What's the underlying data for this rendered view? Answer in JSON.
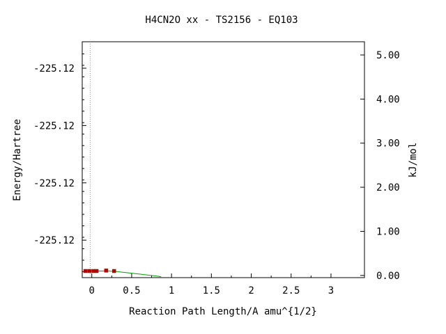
{
  "chart_data": {
    "type": "line",
    "title": "H4CN2O   xx - TS2156 - EQ103",
    "xlabel": "Reaction Path Length/A amu^{1/2}",
    "ylabel_left": "Energy/Hartree",
    "ylabel_right": "kJ/mol",
    "x_ticks": [
      "0",
      "0.5",
      "1",
      "1.5",
      "2",
      "2.5",
      "3"
    ],
    "x_tick_values": [
      0,
      0.5,
      1,
      1.5,
      2,
      2.5,
      3
    ],
    "xlim": [
      -0.12,
      3.42
    ],
    "left_ticks": [
      "-225.12",
      "-225.12",
      "-225.12",
      "-225.12"
    ],
    "left_tick_kj": [
      4.7,
      3.4,
      2.1,
      0.8
    ],
    "right_ticks": [
      "0.00",
      "1.00",
      "2.00",
      "3.00",
      "4.00",
      "5.00"
    ],
    "right_tick_values": [
      0,
      1,
      2,
      3,
      4,
      5
    ],
    "ylim_kj": [
      -0.05,
      5.3
    ],
    "vertical_marker_x": -0.02,
    "curve": {
      "color": "#00a000",
      "x": [
        -0.08,
        0.0,
        0.1,
        0.2,
        0.3,
        0.4,
        0.5,
        0.6,
        0.7,
        0.8,
        0.87
      ],
      "y": [
        0.1,
        0.1,
        0.1,
        0.1,
        0.09,
        0.07,
        0.05,
        0.03,
        0.01,
        -0.01,
        -0.03
      ]
    },
    "points": {
      "color": "#c00000",
      "x": [
        -0.08,
        -0.03,
        0.02,
        0.06,
        0.18,
        0.28
      ],
      "y": [
        0.1,
        0.1,
        0.1,
        0.1,
        0.11,
        0.1
      ]
    },
    "grid": false,
    "legend": "none"
  }
}
